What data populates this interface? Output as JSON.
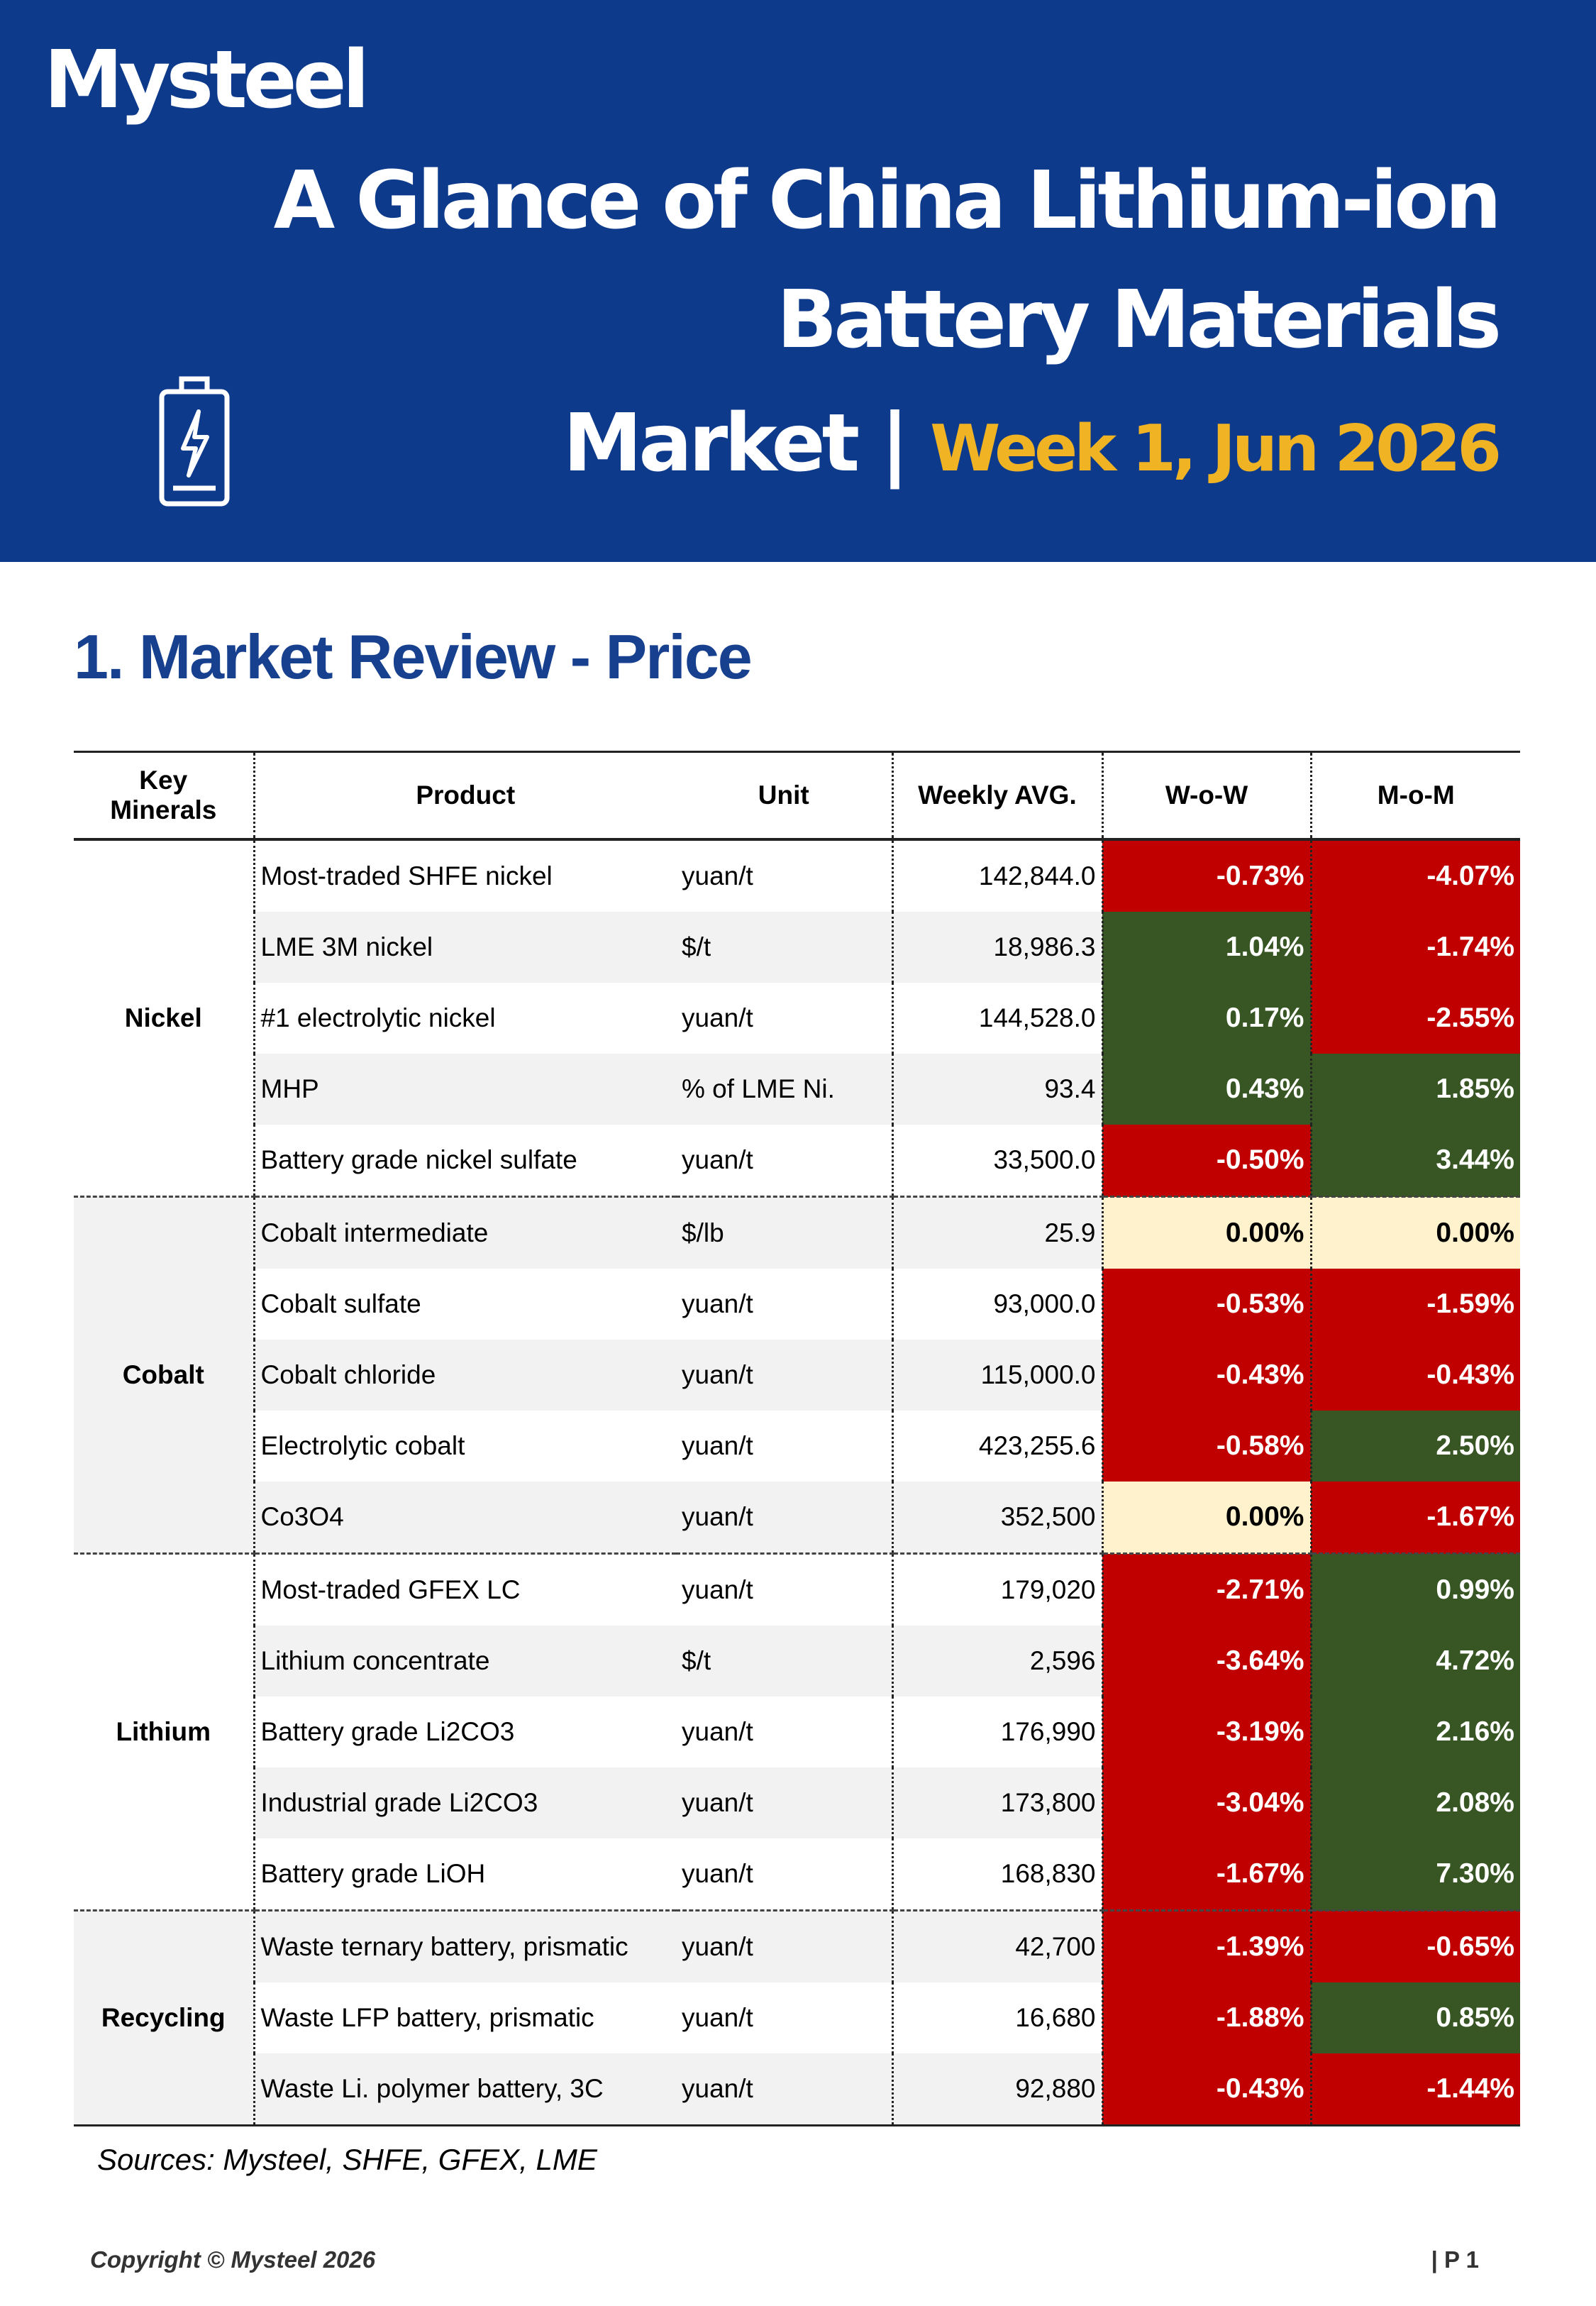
{
  "header": {
    "logo": "Mysteel",
    "title_lines": [
      "A Glance of China Lithium-ion",
      "Battery Materials",
      "Market |"
    ],
    "date": "Week 1, Jun 2026"
  },
  "section_title": "1. Market Review - Price",
  "table": {
    "columns": [
      "Key Minerals",
      "Product",
      "Unit",
      "Weekly AVG.",
      "W-o-W",
      "M-o-M"
    ],
    "groups": [
      {
        "name": "Nickel",
        "rows": [
          [
            "Most-traded SHFE nickel",
            "yuan/t",
            "142,844.0",
            "-0.73%",
            "-4.07%"
          ],
          [
            "LME 3M nickel",
            "$/t",
            "18,986.3",
            "1.04%",
            "-1.74%"
          ],
          [
            "#1 electrolytic nickel",
            "yuan/t",
            "144,528.0",
            "0.17%",
            "-2.55%"
          ],
          [
            "MHP",
            "% of LME Ni.",
            "93.4",
            "0.43%",
            "1.85%"
          ],
          [
            "Battery grade nickel sulfate",
            "yuan/t",
            "33,500.0",
            "-0.50%",
            "3.44%"
          ]
        ]
      },
      {
        "name": "Cobalt",
        "rows": [
          [
            "Cobalt intermediate",
            "$/lb",
            "25.9",
            "0.00%",
            "0.00%"
          ],
          [
            "Cobalt sulfate",
            "yuan/t",
            "93,000.0",
            "-0.53%",
            "-1.59%"
          ],
          [
            "Cobalt chloride",
            "yuan/t",
            "115,000.0",
            "-0.43%",
            "-0.43%"
          ],
          [
            "Electrolytic cobalt",
            "yuan/t",
            "423,255.6",
            "-0.58%",
            "2.50%"
          ],
          [
            "Co3O4",
            "yuan/t",
            "352,500",
            "0.00%",
            "-1.67%"
          ]
        ]
      },
      {
        "name": "Lithium",
        "rows": [
          [
            "Most-traded GFEX LC",
            "yuan/t",
            "179,020",
            "-2.71%",
            "0.99%"
          ],
          [
            "Lithium concentrate",
            "$/t",
            "2,596",
            "-3.64%",
            "4.72%"
          ],
          [
            "Battery grade Li2CO3",
            "yuan/t",
            "176,990",
            "-3.19%",
            "2.16%"
          ],
          [
            "Industrial grade Li2CO3",
            "yuan/t",
            "173,800",
            "-3.04%",
            "2.08%"
          ],
          [
            "Battery grade LiOH",
            "yuan/t",
            "168,830",
            "-1.67%",
            "7.30%"
          ]
        ]
      },
      {
        "name": "Recycling",
        "rows": [
          [
            "Waste ternary battery, prismatic",
            "yuan/t",
            "42,700",
            "-1.39%",
            "-0.65%"
          ],
          [
            "Waste LFP battery, prismatic",
            "yuan/t",
            "16,680",
            "-1.88%",
            "0.85%"
          ],
          [
            "Waste Li. polymer battery, 3C",
            "yuan/t",
            "92,880",
            "-0.43%",
            "-1.44%"
          ]
        ]
      }
    ]
  },
  "sources": "Sources: Mysteel, SHFE, GFEX, LME",
  "footer": {
    "copyright": "Copyright © Mysteel 2026",
    "page": "| P 1"
  }
}
